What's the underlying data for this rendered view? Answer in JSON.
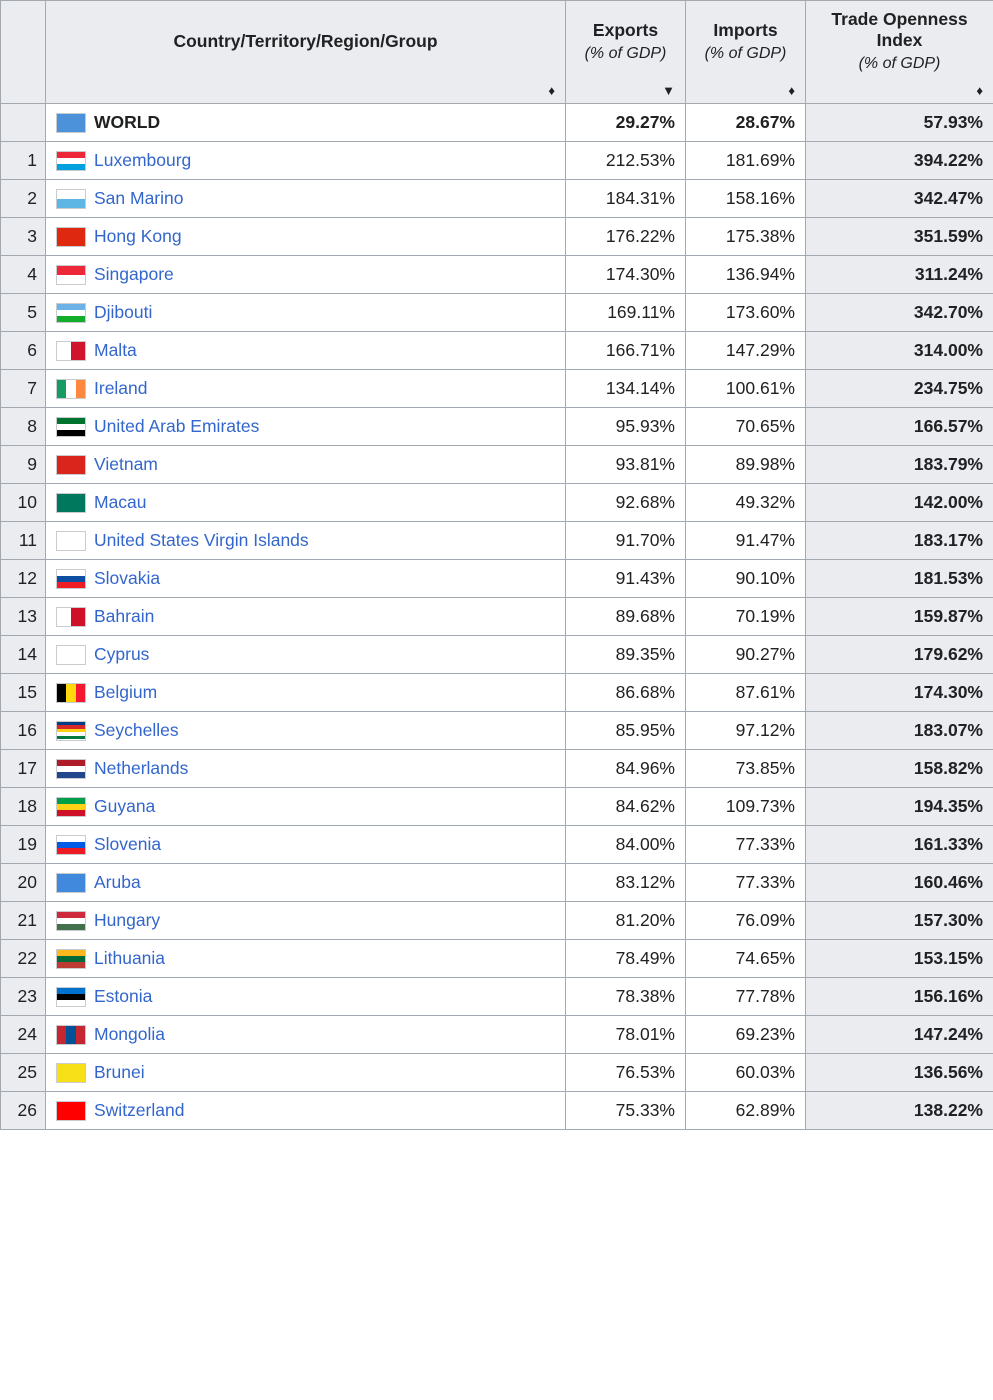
{
  "table": {
    "columns": {
      "rank": "",
      "country": "Country/Territory/Region/Group",
      "exports": "Exports",
      "exports_sub": "(% of GDP)",
      "imports": "Imports",
      "imports_sub": "(% of GDP)",
      "openness": "Trade Openness Index",
      "openness_sub": "(% of GDP)"
    },
    "sort_icons": {
      "neutral": "♦",
      "down": "▼"
    },
    "colors": {
      "header_bg": "#eaecf0",
      "border": "#a2a9b1",
      "link": "#3366cc",
      "text": "#202122",
      "openness_bg": "#eaecf0"
    },
    "world": {
      "label": "WORLD",
      "flag": [
        "#4b92db"
      ],
      "exports": "29.27%",
      "imports": "28.67%",
      "openness": "57.93%"
    },
    "rows": [
      {
        "rank": 1,
        "name": "Luxembourg",
        "flag": [
          "#ED2939",
          "#FFFFFF",
          "#00A1DE"
        ],
        "exports": "212.53%",
        "imports": "181.69%",
        "openness": "394.22%"
      },
      {
        "rank": 2,
        "name": "San Marino",
        "flag": [
          "#FFFFFF",
          "#5EB6E4"
        ],
        "exports": "184.31%",
        "imports": "158.16%",
        "openness": "342.47%"
      },
      {
        "rank": 3,
        "name": "Hong Kong",
        "flag": [
          "#DE2910"
        ],
        "exports": "176.22%",
        "imports": "175.38%",
        "openness": "351.59%"
      },
      {
        "rank": 4,
        "name": "Singapore",
        "flag": [
          "#ED2939",
          "#FFFFFF"
        ],
        "exports": "174.30%",
        "imports": "136.94%",
        "openness": "311.24%"
      },
      {
        "rank": 5,
        "name": "Djibouti",
        "flag": [
          "#6AB2E7",
          "#FFFFFF",
          "#12AD2B"
        ],
        "exports": "169.11%",
        "imports": "173.60%",
        "openness": "342.70%"
      },
      {
        "rank": 6,
        "name": "Malta",
        "flag": [
          "#FFFFFF",
          "#CF142B"
        ],
        "vertical": true,
        "exports": "166.71%",
        "imports": "147.29%",
        "openness": "314.00%"
      },
      {
        "rank": 7,
        "name": "Ireland",
        "flag": [
          "#169B62",
          "#FFFFFF",
          "#FF883E"
        ],
        "vertical": true,
        "exports": "134.14%",
        "imports": "100.61%",
        "openness": "234.75%"
      },
      {
        "rank": 8,
        "name": "United Arab Emirates",
        "flag": [
          "#00732F",
          "#FFFFFF",
          "#000000"
        ],
        "exports": "95.93%",
        "imports": "70.65%",
        "openness": "166.57%"
      },
      {
        "rank": 9,
        "name": "Vietnam",
        "flag": [
          "#DA251D"
        ],
        "exports": "93.81%",
        "imports": "89.98%",
        "openness": "183.79%"
      },
      {
        "rank": 10,
        "name": "Macau",
        "flag": [
          "#00785E"
        ],
        "exports": "92.68%",
        "imports": "49.32%",
        "openness": "142.00%"
      },
      {
        "rank": 11,
        "name": "United States Virgin Islands",
        "flag": [
          "#FFFFFF"
        ],
        "exports": "91.70%",
        "imports": "91.47%",
        "openness": "183.17%"
      },
      {
        "rank": 12,
        "name": "Slovakia",
        "flag": [
          "#FFFFFF",
          "#0B4EA2",
          "#EE1C25"
        ],
        "exports": "91.43%",
        "imports": "90.10%",
        "openness": "181.53%"
      },
      {
        "rank": 13,
        "name": "Bahrain",
        "flag": [
          "#FFFFFF",
          "#CE1126"
        ],
        "vertical": true,
        "exports": "89.68%",
        "imports": "70.19%",
        "openness": "159.87%"
      },
      {
        "rank": 14,
        "name": "Cyprus",
        "flag": [
          "#FFFFFF"
        ],
        "exports": "89.35%",
        "imports": "90.27%",
        "openness": "179.62%"
      },
      {
        "rank": 15,
        "name": "Belgium",
        "flag": [
          "#000000",
          "#FFD90C",
          "#F31830"
        ],
        "vertical": true,
        "exports": "86.68%",
        "imports": "87.61%",
        "openness": "174.30%"
      },
      {
        "rank": 16,
        "name": "Seychelles",
        "flag": [
          "#003F87",
          "#D62828",
          "#FCD116",
          "#FFFFFF",
          "#007A3D"
        ],
        "exports": "85.95%",
        "imports": "97.12%",
        "openness": "183.07%"
      },
      {
        "rank": 17,
        "name": "Netherlands",
        "flag": [
          "#AE1C28",
          "#FFFFFF",
          "#21468B"
        ],
        "exports": "84.96%",
        "imports": "73.85%",
        "openness": "158.82%"
      },
      {
        "rank": 18,
        "name": "Guyana",
        "flag": [
          "#009E49",
          "#FCD116",
          "#CE1126"
        ],
        "exports": "84.62%",
        "imports": "109.73%",
        "openness": "194.35%"
      },
      {
        "rank": 19,
        "name": "Slovenia",
        "flag": [
          "#FFFFFF",
          "#005CE6",
          "#ED1C24"
        ],
        "exports": "84.00%",
        "imports": "77.33%",
        "openness": "161.33%"
      },
      {
        "rank": 20,
        "name": "Aruba",
        "flag": [
          "#4189DD"
        ],
        "exports": "83.12%",
        "imports": "77.33%",
        "openness": "160.46%"
      },
      {
        "rank": 21,
        "name": "Hungary",
        "flag": [
          "#CD2A3E",
          "#FFFFFF",
          "#436F4D"
        ],
        "exports": "81.20%",
        "imports": "76.09%",
        "openness": "157.30%"
      },
      {
        "rank": 22,
        "name": "Lithuania",
        "flag": [
          "#FFB81C",
          "#046A38",
          "#BE3A34"
        ],
        "exports": "78.49%",
        "imports": "74.65%",
        "openness": "153.15%"
      },
      {
        "rank": 23,
        "name": "Estonia",
        "flag": [
          "#0072CE",
          "#000000",
          "#FFFFFF"
        ],
        "exports": "78.38%",
        "imports": "77.78%",
        "openness": "156.16%"
      },
      {
        "rank": 24,
        "name": "Mongolia",
        "flag": [
          "#C4272F",
          "#015197",
          "#C4272F"
        ],
        "vertical": true,
        "exports": "78.01%",
        "imports": "69.23%",
        "openness": "147.24%"
      },
      {
        "rank": 25,
        "name": "Brunei",
        "flag": [
          "#F7E017"
        ],
        "exports": "76.53%",
        "imports": "60.03%",
        "openness": "136.56%"
      },
      {
        "rank": 26,
        "name": "Switzerland",
        "flag": [
          "#FF0000"
        ],
        "exports": "75.33%",
        "imports": "62.89%",
        "openness": "138.22%"
      }
    ]
  }
}
